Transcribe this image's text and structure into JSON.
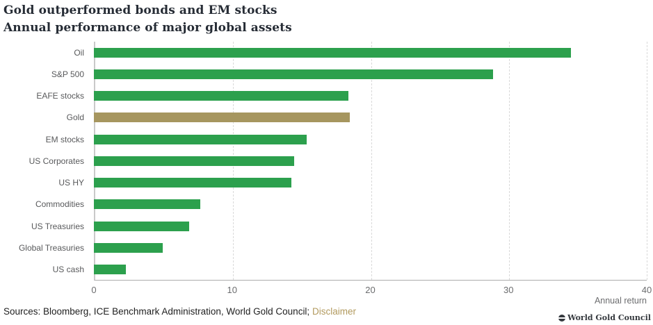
{
  "header": {
    "title": "Gold outperformed bonds and EM stocks",
    "subtitle": "Annual performance of major global assets"
  },
  "chart_data": {
    "type": "bar",
    "orientation": "horizontal",
    "title": "Gold outperformed bonds and EM stocks",
    "subtitle": "Annual performance of major global assets",
    "categories": [
      "Oil",
      "S&P 500",
      "EAFE stocks",
      "Gold",
      "EM stocks",
      "US Corporates",
      "US HY",
      "Commodities",
      "US Treasuries",
      "Global Treasuries",
      "US cash"
    ],
    "values": [
      34.5,
      28.9,
      18.4,
      18.5,
      15.4,
      14.5,
      14.3,
      7.7,
      6.9,
      5.0,
      2.3
    ],
    "highlight_index": 3,
    "colors": {
      "bar": "#2ca04d",
      "highlight": "#a6965f"
    },
    "xlabel": "Annual return",
    "xlim": [
      0,
      40
    ],
    "xticks": [
      0,
      10,
      20,
      30,
      40
    ],
    "grid": "vertical-dashed",
    "legend": "none"
  },
  "footer": {
    "sources": "Sources: Bloomberg, ICE Benchmark Administration, World Gold Council; ",
    "disclaimer": "Disclaimer",
    "copyright": "World Gold Council"
  }
}
